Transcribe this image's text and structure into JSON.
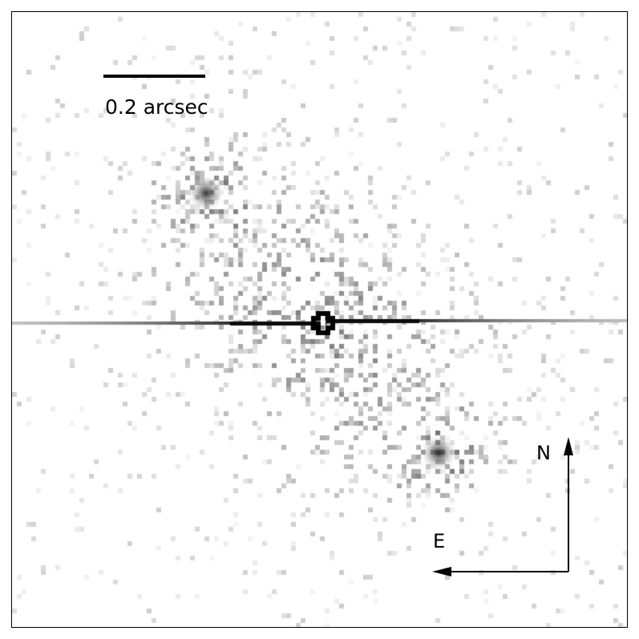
{
  "image": {
    "description_free": true,
    "colormap": "inverted-grayscale",
    "scale_bar": {
      "label": "0.2 arcsec"
    },
    "compass": {
      "north_label": "N",
      "east_label": "E"
    },
    "sources": [
      {
        "name": "central-star",
        "kind": "saturated-core-with-diffraction-streak"
      },
      {
        "name": "companion-upper-left",
        "kind": "point-source"
      },
      {
        "name": "companion-lower-right",
        "kind": "point-source"
      }
    ]
  }
}
